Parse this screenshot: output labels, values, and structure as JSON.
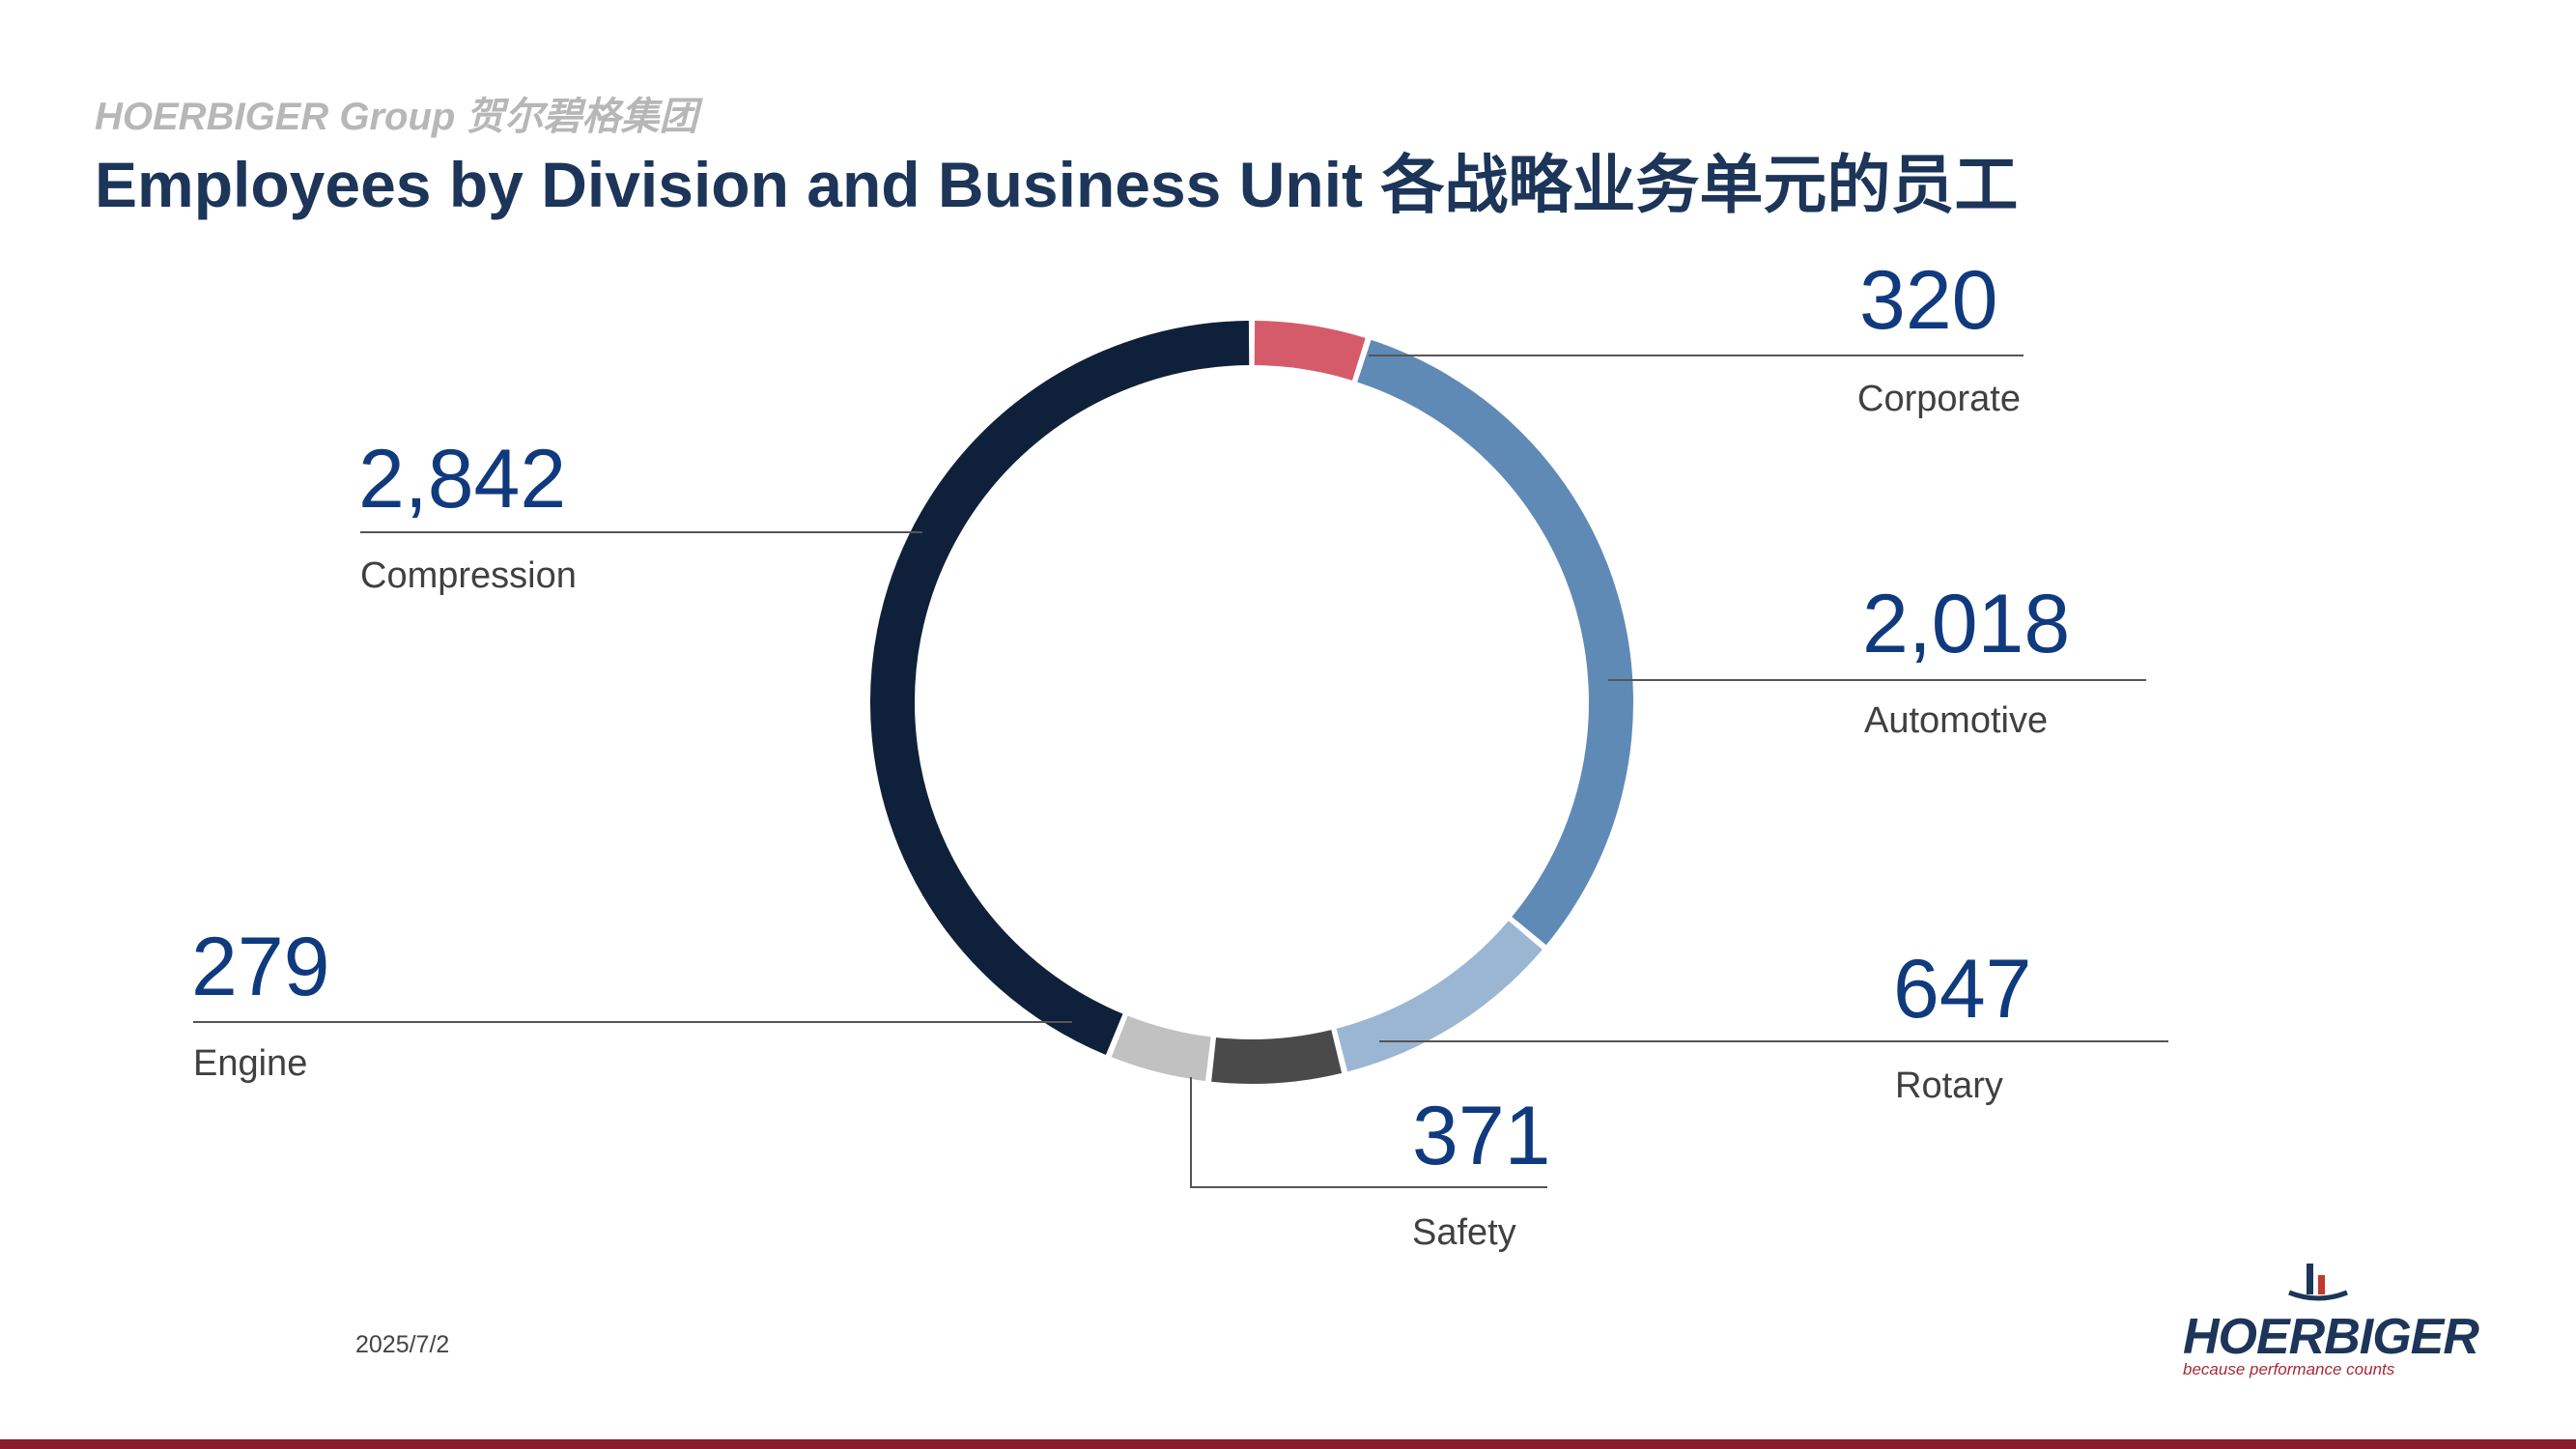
{
  "header": {
    "group_label": "HOERBIGER Group 贺尔碧格集团",
    "title": "Employees by Division and Business Unit  各战略业务单元的员工"
  },
  "footer": {
    "date": "2025/7/2",
    "logo_text": "HOERBIGER",
    "logo_tagline": "because performance counts"
  },
  "colors": {
    "title": "#1c3559",
    "value": "#103a7e",
    "bottom_bar": "#8a1c2b"
  },
  "chart_data": {
    "type": "pie",
    "style": "donut",
    "categories": [
      "Corporate",
      "Automotive",
      "Rotary",
      "Safety",
      "Engine",
      "Compression"
    ],
    "values": [
      320,
      2018,
      647,
      371,
      279,
      2842
    ],
    "value_labels": [
      "320",
      "2,018",
      "647",
      "371",
      "279",
      "2,842"
    ],
    "colors": [
      "#d65b6a",
      "#5f8ab6",
      "#9ab6d3",
      "#4a4a4a",
      "#c1c1c1",
      "#0f213a"
    ],
    "start": "top, clockwise"
  }
}
